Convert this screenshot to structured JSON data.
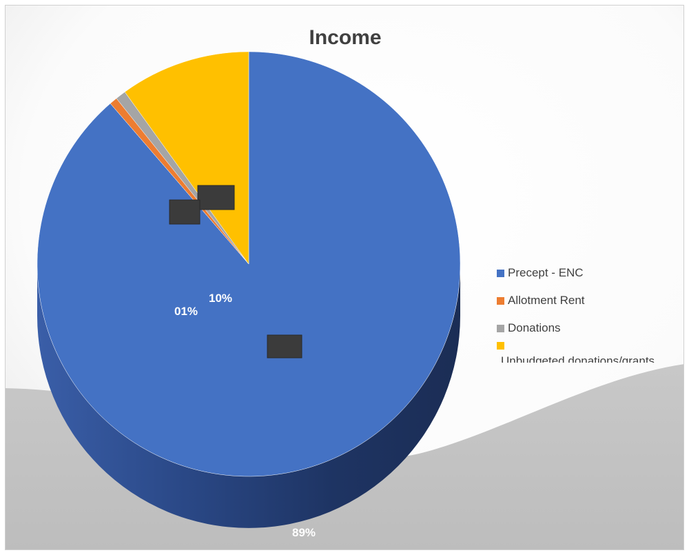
{
  "chart_data": {
    "type": "pie",
    "title": "Income",
    "categories": [
      "Precept - ENC",
      "Allotment Rent",
      "Donations",
      "Unbudgeted donations/grants"
    ],
    "values": [
      89,
      0.6,
      0.8,
      10
    ],
    "data_labels": [
      "89%",
      "01%",
      "",
      "10%"
    ],
    "colors": [
      "#4472c4",
      "#ed7d31",
      "#a5a5a5",
      "#ffc000"
    ],
    "legend_position": "right",
    "style": "3d"
  }
}
